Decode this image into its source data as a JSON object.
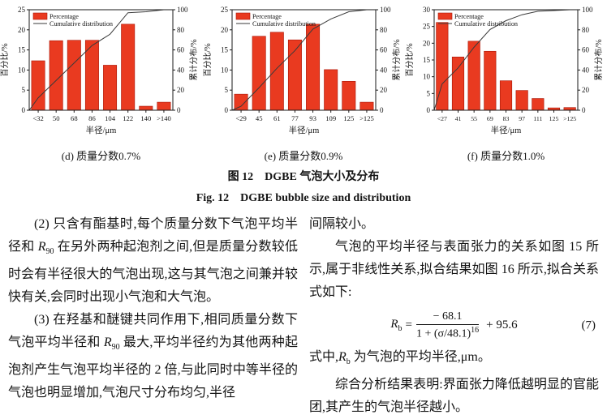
{
  "figure": {
    "caption_zh": "图 12　DGBE 气泡大小及分布",
    "caption_en": "Fig. 12　DGBE bubble size and distribution"
  },
  "chart_data": [
    {
      "type": "bar+line",
      "title": "",
      "caption": "(d) 质量分数0.7%",
      "categories": [
        "<32",
        "50",
        "68",
        "86",
        "104",
        "122",
        "140",
        ">140"
      ],
      "series": [
        {
          "name": "Percentage",
          "type": "bar",
          "values": [
            12.3,
            17.3,
            17.4,
            17.4,
            11.2,
            21.4,
            1.0,
            2.0
          ]
        },
        {
          "name": "Cumulative distribution",
          "type": "line",
          "values": [
            12.3,
            29.6,
            47.0,
            64.4,
            75.6,
            97.0,
            98.0,
            100
          ]
        }
      ],
      "xlabel": "半径/μm",
      "ylabel_left": "百分比/%",
      "ylabel_right": "累计分布/%",
      "ylim_left": [
        0,
        25
      ],
      "yticks_left": [
        0,
        5,
        10,
        15,
        20,
        25
      ],
      "ylim_right": [
        0,
        100
      ],
      "yticks_right": [
        0,
        20,
        40,
        60,
        80,
        100
      ],
      "legend": [
        "Percentage",
        "Cumulative distribution"
      ],
      "legend_position": "top-left",
      "grid": false,
      "bar_color": "#e93a20",
      "bar_edge": "#a81708",
      "line_color": "#3a3a3a"
    },
    {
      "type": "bar+line",
      "title": "",
      "caption": "(e) 质量分数0.9%",
      "categories": [
        "<29",
        "45",
        "61",
        "77",
        "93",
        "109",
        "125",
        ">125"
      ],
      "series": [
        {
          "name": "Percentage",
          "type": "bar",
          "values": [
            4.0,
            18.4,
            19.4,
            17.5,
            21.4,
            10.1,
            7.2,
            2.0
          ]
        },
        {
          "name": "Cumulative distribution",
          "type": "line",
          "values": [
            4.0,
            22.4,
            41.8,
            59.3,
            80.7,
            90.8,
            98.0,
            100
          ]
        }
      ],
      "xlabel": "半径/μm",
      "ylabel_left": "百分比/%",
      "ylabel_right": "累计分布/%",
      "ylim_left": [
        0,
        25
      ],
      "yticks_left": [
        0,
        5,
        10,
        15,
        20,
        25
      ],
      "ylim_right": [
        0,
        100
      ],
      "yticks_right": [
        0,
        20,
        40,
        60,
        80,
        100
      ],
      "legend": [
        "Percentage",
        "Cumulative distribution"
      ],
      "legend_position": "top-left",
      "grid": false,
      "bar_color": "#e93a20",
      "bar_edge": "#a81708",
      "line_color": "#3a3a3a"
    },
    {
      "type": "bar+line",
      "title": "",
      "caption": "(f) 质量分数1.0%",
      "categories": [
        "<27",
        "41",
        "55",
        "69",
        "83",
        "97",
        "111",
        "125",
        ">125"
      ],
      "series": [
        {
          "name": "Percentage",
          "type": "bar",
          "values": [
            26.2,
            15.9,
            20.6,
            17.6,
            8.8,
            5.9,
            3.5,
            0.7,
            0.8
          ]
        },
        {
          "name": "Cumulative distribution",
          "type": "line",
          "values": [
            26.2,
            42.1,
            62.7,
            80.3,
            89.1,
            95.0,
            98.5,
            99.2,
            100
          ]
        }
      ],
      "xlabel": "半径/μm",
      "ylabel_left": "百分比/%",
      "ylabel_right": "累计分布/%",
      "ylim_left": [
        0,
        30
      ],
      "yticks_left": [
        0,
        5,
        10,
        15,
        20,
        25,
        30
      ],
      "ylim_right": [
        0,
        100
      ],
      "yticks_right": [
        0,
        20,
        40,
        60,
        80,
        100
      ],
      "legend": [
        "Percentage",
        "Cumulative distribution"
      ],
      "legend_position": "top-left",
      "grid": false,
      "bar_color": "#e93a20",
      "bar_edge": "#a81708",
      "line_color": "#3a3a3a"
    }
  ],
  "body": {
    "left": {
      "para2": {
        "pre": "(2) 只含有酯基时,每个质量分数下气泡平均半径和 ",
        "var": "R",
        "sub": "90",
        "post": " 在另外两种起泡剂之间,但是质量分数较低时会有半径很大的气泡出现,这与其气泡之间兼并较快有关,会同时出现小气泡和大气泡。"
      },
      "para3": {
        "pre": "(3) 在羟基和醚键共同作用下,相同质量分数下气泡平均半径和 ",
        "var": "R",
        "sub": "90",
        "post": " 最大,平均半径约为其他两种起泡剂产生气泡平均半径的 2 倍,与此同时中等半径的气泡也明显增加,气泡尺寸分布均匀,半径"
      }
    },
    "right": {
      "para1": "间隔较小。",
      "para2": "气泡的平均半径与表面张力的关系如图 15 所示,属于非线性关系,拟合结果如图 16 所示,拟合关系式如下:",
      "equation": {
        "lhs_var": "R",
        "lhs_sub": "b",
        "rel": "=",
        "numerator": "− 68.1",
        "denom": "1 + (σ/48.1)",
        "denom_exp": "16",
        "tail": "+ 95.6",
        "number": "(7)"
      },
      "para3": {
        "pre": "式中,",
        "var": "R",
        "sub": "b",
        "post": " 为气泡的平均半径,μm。"
      },
      "para4": "综合分析结果表明:界面张力降低越明显的官能团,其产生的气泡半径越小。"
    }
  }
}
